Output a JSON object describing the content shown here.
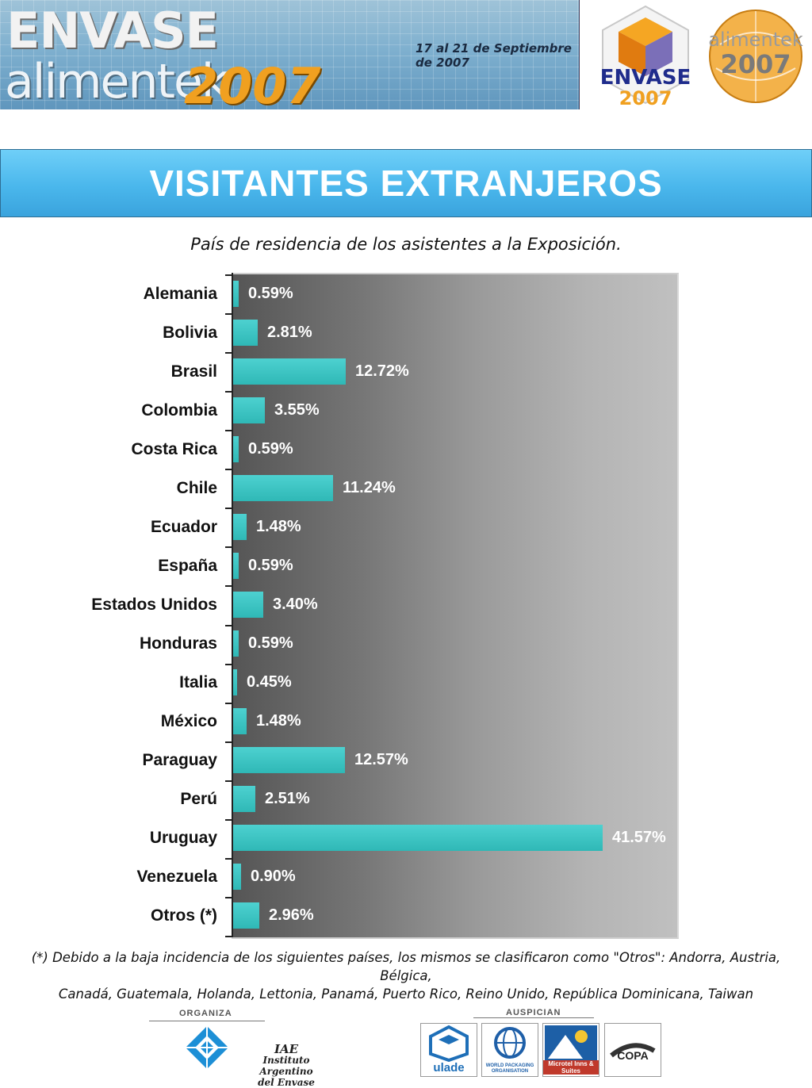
{
  "header": {
    "banner_line1": "ENVASE",
    "banner_line2": "alimentek",
    "banner_year": "2007",
    "banner_dates": "17 al 21 de Septiembre de 2007",
    "logo_envase_text": "ENVASE",
    "logo_envase_year": "2007",
    "logo_alimentek_text": "alimentek",
    "logo_alimentek_year": "2007"
  },
  "title": "VISITANTES EXTRANJEROS",
  "subtitle": "País de residencia de los asistentes a la Exposición.",
  "chart_data": {
    "type": "bar",
    "orientation": "horizontal",
    "categories": [
      "Alemania",
      "Bolivia",
      "Brasil",
      "Colombia",
      "Costa Rica",
      "Chile",
      "Ecuador",
      "España",
      "Estados Unidos",
      "Honduras",
      "Italia",
      "México",
      "Paraguay",
      "Perú",
      "Uruguay",
      "Venezuela",
      "Otros (*)"
    ],
    "values": [
      0.59,
      2.81,
      12.72,
      3.55,
      0.59,
      11.24,
      1.48,
      0.59,
      3.4,
      0.59,
      0.45,
      1.48,
      12.57,
      2.51,
      41.57,
      0.9,
      2.96
    ],
    "value_labels": [
      "0.59%",
      "2.81%",
      "12.72%",
      "3.55%",
      "0.59%",
      "11.24%",
      "1.48%",
      "0.59%",
      "3.40%",
      "0.59%",
      "0.45%",
      "1.48%",
      "12.57%",
      "2.51%",
      "41.57%",
      "0.90%",
      "2.96%"
    ],
    "unit": "%",
    "xlim": [
      0,
      50
    ],
    "bar_color": "#2fb8b6",
    "grid": false,
    "legend": "none"
  },
  "footnote_line1": "(*) Debido a la baja incidencia de los siguientes países, los mismos se clasificaron como \"Otros\": Andorra, Austria, Bélgica,",
  "footnote_line2": "Canadá, Guatemala, Holanda, Lettonia, Panamá, Puerto Rico, Reino Unido, República Dominicana, Taiwan",
  "footer": {
    "organiza_label": "ORGANIZA",
    "auspician_label": "AUSPICIAN",
    "iae_abbr": "IAE",
    "iae_name_line1": "Instituto Argentino",
    "iae_name_line2": "del Envase",
    "sponsor1": "ulade",
    "sponsor2": "WORLD PACKAGING ORGANISATION",
    "sponsor3": "Microtel Inns & Suites",
    "sponsor4": "COPA"
  },
  "colors": {
    "title_bar": "#4ab7ec",
    "bar": "#2fb8b6",
    "accent_orange": "#f0a020"
  }
}
